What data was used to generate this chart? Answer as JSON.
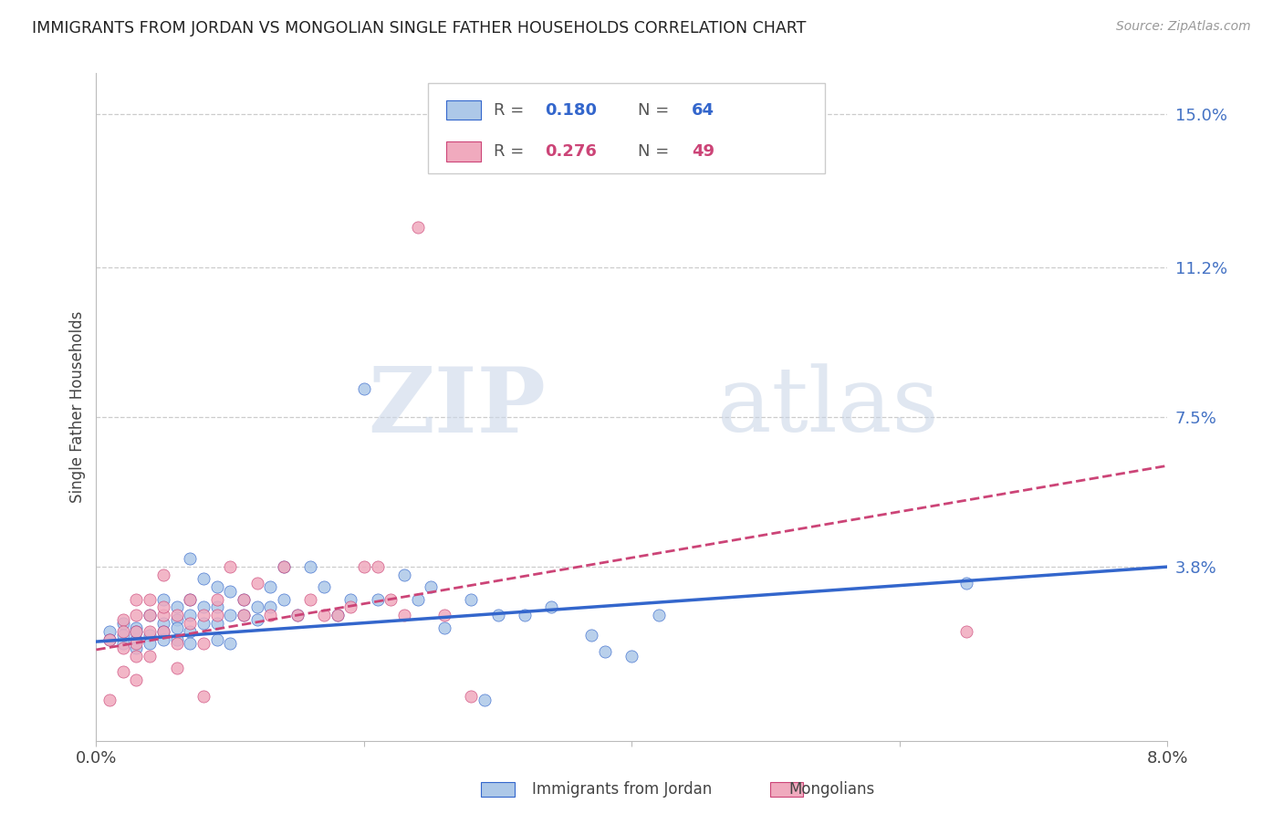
{
  "title": "IMMIGRANTS FROM JORDAN VS MONGOLIAN SINGLE FATHER HOUSEHOLDS CORRELATION CHART",
  "source": "Source: ZipAtlas.com",
  "ylabel": "Single Father Households",
  "xlim": [
    0.0,
    0.08
  ],
  "ylim": [
    -0.005,
    0.16
  ],
  "yticks": [
    0.0,
    0.038,
    0.075,
    0.112,
    0.15
  ],
  "ytick_labels": [
    "",
    "3.8%",
    "7.5%",
    "11.2%",
    "15.0%"
  ],
  "xticks": [
    0.0,
    0.02,
    0.04,
    0.06,
    0.08
  ],
  "xtick_labels": [
    "0.0%",
    "",
    "",
    "",
    "8.0%"
  ],
  "color_jordan": "#adc8e8",
  "color_mongolia": "#f0aabe",
  "line_color_jordan": "#3366cc",
  "line_color_mongolia": "#cc4477",
  "watermark_zip": "ZIP",
  "watermark_atlas": "atlas",
  "jordan_points": [
    [
      0.001,
      0.022
    ],
    [
      0.001,
      0.02
    ],
    [
      0.002,
      0.024
    ],
    [
      0.002,
      0.019
    ],
    [
      0.002,
      0.021
    ],
    [
      0.003,
      0.023
    ],
    [
      0.003,
      0.02
    ],
    [
      0.003,
      0.018
    ],
    [
      0.003,
      0.022
    ],
    [
      0.004,
      0.026
    ],
    [
      0.004,
      0.021
    ],
    [
      0.004,
      0.019
    ],
    [
      0.005,
      0.03
    ],
    [
      0.005,
      0.024
    ],
    [
      0.005,
      0.022
    ],
    [
      0.005,
      0.02
    ],
    [
      0.006,
      0.028
    ],
    [
      0.006,
      0.025
    ],
    [
      0.006,
      0.023
    ],
    [
      0.006,
      0.02
    ],
    [
      0.007,
      0.04
    ],
    [
      0.007,
      0.03
    ],
    [
      0.007,
      0.026
    ],
    [
      0.007,
      0.022
    ],
    [
      0.007,
      0.019
    ],
    [
      0.008,
      0.035
    ],
    [
      0.008,
      0.028
    ],
    [
      0.008,
      0.024
    ],
    [
      0.009,
      0.033
    ],
    [
      0.009,
      0.028
    ],
    [
      0.009,
      0.024
    ],
    [
      0.009,
      0.02
    ],
    [
      0.01,
      0.032
    ],
    [
      0.01,
      0.026
    ],
    [
      0.01,
      0.019
    ],
    [
      0.011,
      0.03
    ],
    [
      0.011,
      0.026
    ],
    [
      0.012,
      0.028
    ],
    [
      0.012,
      0.025
    ],
    [
      0.013,
      0.033
    ],
    [
      0.013,
      0.028
    ],
    [
      0.014,
      0.038
    ],
    [
      0.014,
      0.03
    ],
    [
      0.015,
      0.026
    ],
    [
      0.016,
      0.038
    ],
    [
      0.017,
      0.033
    ],
    [
      0.018,
      0.026
    ],
    [
      0.019,
      0.03
    ],
    [
      0.02,
      0.082
    ],
    [
      0.021,
      0.03
    ],
    [
      0.023,
      0.036
    ],
    [
      0.024,
      0.03
    ],
    [
      0.025,
      0.033
    ],
    [
      0.026,
      0.023
    ],
    [
      0.028,
      0.03
    ],
    [
      0.029,
      0.005
    ],
    [
      0.03,
      0.026
    ],
    [
      0.032,
      0.026
    ],
    [
      0.034,
      0.028
    ],
    [
      0.037,
      0.021
    ],
    [
      0.038,
      0.017
    ],
    [
      0.04,
      0.016
    ],
    [
      0.042,
      0.026
    ],
    [
      0.065,
      0.034
    ]
  ],
  "mongolia_points": [
    [
      0.001,
      0.02
    ],
    [
      0.001,
      0.005
    ],
    [
      0.002,
      0.025
    ],
    [
      0.002,
      0.018
    ],
    [
      0.002,
      0.022
    ],
    [
      0.002,
      0.012
    ],
    [
      0.003,
      0.03
    ],
    [
      0.003,
      0.026
    ],
    [
      0.003,
      0.022
    ],
    [
      0.003,
      0.019
    ],
    [
      0.003,
      0.016
    ],
    [
      0.003,
      0.01
    ],
    [
      0.004,
      0.03
    ],
    [
      0.004,
      0.026
    ],
    [
      0.004,
      0.022
    ],
    [
      0.004,
      0.016
    ],
    [
      0.005,
      0.036
    ],
    [
      0.005,
      0.026
    ],
    [
      0.005,
      0.022
    ],
    [
      0.005,
      0.028
    ],
    [
      0.006,
      0.026
    ],
    [
      0.006,
      0.019
    ],
    [
      0.006,
      0.013
    ],
    [
      0.007,
      0.024
    ],
    [
      0.007,
      0.03
    ],
    [
      0.008,
      0.026
    ],
    [
      0.008,
      0.019
    ],
    [
      0.008,
      0.006
    ],
    [
      0.009,
      0.03
    ],
    [
      0.009,
      0.026
    ],
    [
      0.01,
      0.038
    ],
    [
      0.011,
      0.03
    ],
    [
      0.011,
      0.026
    ],
    [
      0.012,
      0.034
    ],
    [
      0.013,
      0.026
    ],
    [
      0.014,
      0.038
    ],
    [
      0.015,
      0.026
    ],
    [
      0.016,
      0.03
    ],
    [
      0.017,
      0.026
    ],
    [
      0.018,
      0.026
    ],
    [
      0.019,
      0.028
    ],
    [
      0.02,
      0.038
    ],
    [
      0.021,
      0.038
    ],
    [
      0.022,
      0.03
    ],
    [
      0.023,
      0.026
    ],
    [
      0.024,
      0.122
    ],
    [
      0.026,
      0.026
    ],
    [
      0.028,
      0.006
    ],
    [
      0.065,
      0.022
    ]
  ],
  "jordan_line": [
    [
      0.0,
      0.0195
    ],
    [
      0.08,
      0.038
    ]
  ],
  "mongolia_line": [
    [
      0.0,
      0.0175
    ],
    [
      0.08,
      0.063
    ]
  ]
}
